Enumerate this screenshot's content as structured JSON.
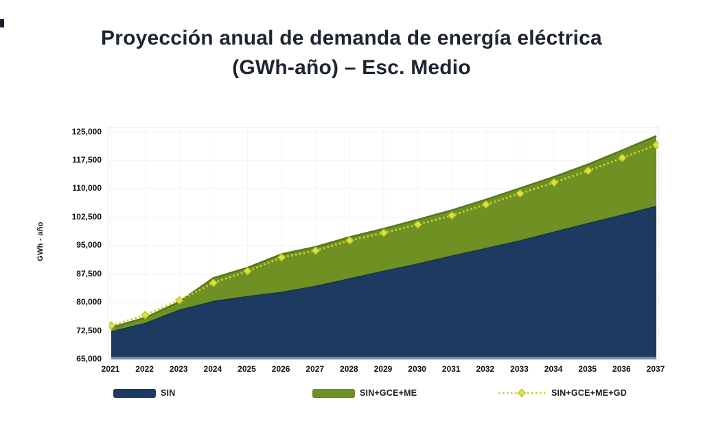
{
  "title": {
    "line1": "Proyección anual de demanda de energía eléctrica",
    "line2": "(GWh-año) – Esc. Medio"
  },
  "chart_data": {
    "type": "area",
    "title": "Proyección anual de demanda de energía eléctrica (GWh-año) – Esc. Medio",
    "xlabel": "",
    "ylabel": "GWh - año",
    "x": [
      2021,
      2022,
      2023,
      2024,
      2025,
      2026,
      2027,
      2028,
      2029,
      2030,
      2031,
      2032,
      2033,
      2034,
      2035,
      2036,
      2037
    ],
    "series": [
      {
        "name": "SIN",
        "type": "area",
        "color": "#1d3a61",
        "edge_color": "#16304f",
        "values": [
          72300,
          74500,
          78000,
          80300,
          81600,
          82700,
          84300,
          86300,
          88300,
          90200,
          92300,
          94300,
          96300,
          98600,
          100900,
          103100,
          105400
        ]
      },
      {
        "name": "SIN+GCE+ME",
        "type": "area",
        "color": "#6f9023",
        "edge_color": "#577619",
        "values": [
          73400,
          76000,
          80200,
          86500,
          89200,
          92800,
          94700,
          97300,
          99500,
          101900,
          104400,
          107200,
          110200,
          113200,
          116500,
          120200,
          124000
        ]
      },
      {
        "name": "SIN+GCE+ME+GD",
        "type": "dotted-line",
        "color": "#c5d02f",
        "marker": "diamond",
        "marker_fill": "#dce342",
        "marker_stroke": "#b9c41f",
        "values": [
          73900,
          76700,
          80600,
          85200,
          88300,
          91900,
          93700,
          96400,
          98400,
          100600,
          103000,
          105900,
          108800,
          111700,
          114800,
          118200,
          121600
        ]
      }
    ],
    "ylim": [
      65000,
      125000
    ],
    "yticks": [
      65000,
      72500,
      80000,
      87500,
      95000,
      102500,
      110000,
      117500,
      125000
    ],
    "ytick_labels": [
      "65,000",
      "72,500",
      "80,000",
      "87,500",
      "95,000",
      "102,500",
      "110,000",
      "117,500",
      "125,000"
    ],
    "grid": true,
    "grid_color": "#efefef",
    "baseline_color": "#8291a7",
    "legend_position": "bottom"
  }
}
